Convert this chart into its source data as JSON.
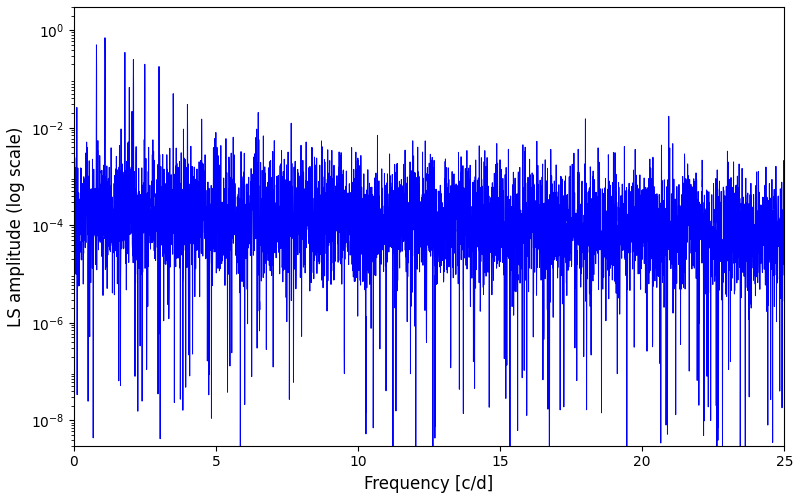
{
  "title": "",
  "xlabel": "Frequency [c/d]",
  "ylabel": "LS amplitude (log scale)",
  "xlim": [
    0,
    25
  ],
  "ylim_log": [
    3e-09,
    3.0
  ],
  "yticks": [
    1e-08,
    1e-06,
    0.0001,
    0.01,
    1.0
  ],
  "xticks": [
    0,
    5,
    10,
    15,
    20,
    25
  ],
  "line_color": "#0000ff",
  "line_width": 0.7,
  "background_color": "#ffffff",
  "seed": 12345,
  "n_points": 5000,
  "freq_max": 25.0
}
